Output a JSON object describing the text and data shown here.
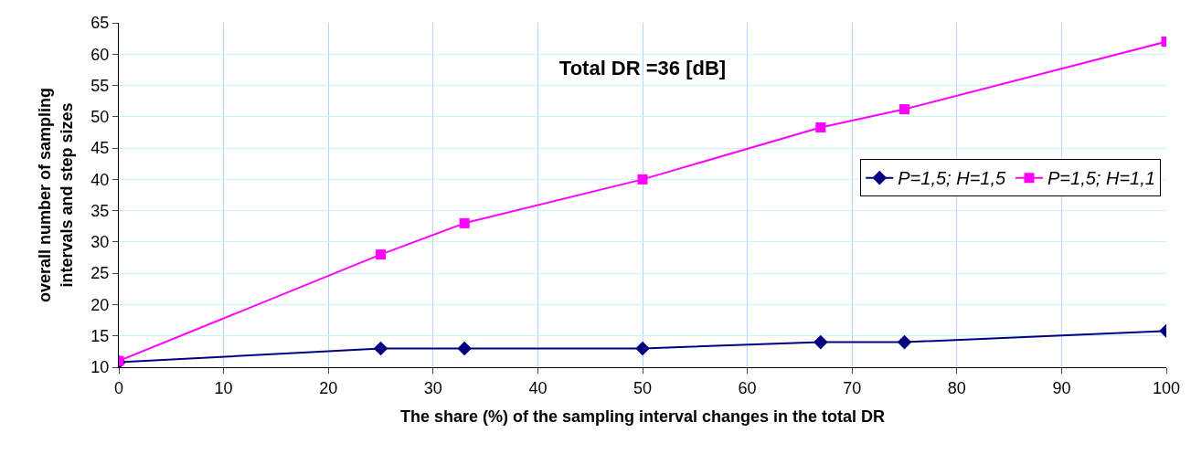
{
  "chart_data": {
    "type": "line",
    "title": "Total DR =36 [dB]",
    "xlabel": "The share (%) of the sampling interval changes in the total DR",
    "ylabel": "overall number of sampling intervals and step sizes",
    "x": [
      0,
      25,
      33,
      50,
      67,
      75,
      100
    ],
    "series": [
      {
        "name": "P=1,5; H=1,5",
        "color": "#000080",
        "marker": "diamond",
        "values": [
          10.8,
          13,
          13,
          13,
          14,
          14,
          15.8
        ]
      },
      {
        "name": "P=1,5; H=1,1",
        "color": "#ff00ff",
        "marker": "square",
        "values": [
          11,
          28,
          33,
          40,
          48.3,
          51.2,
          62
        ]
      }
    ],
    "xlim": [
      0,
      100
    ],
    "xticks": [
      0,
      10,
      20,
      30,
      40,
      50,
      60,
      70,
      80,
      90,
      100
    ],
    "ylim": [
      10,
      65
    ],
    "yticks": [
      10,
      15,
      20,
      25,
      30,
      35,
      40,
      45,
      50,
      55,
      60,
      65
    ],
    "grid": true,
    "legend": "right",
    "line_style": "solid"
  }
}
